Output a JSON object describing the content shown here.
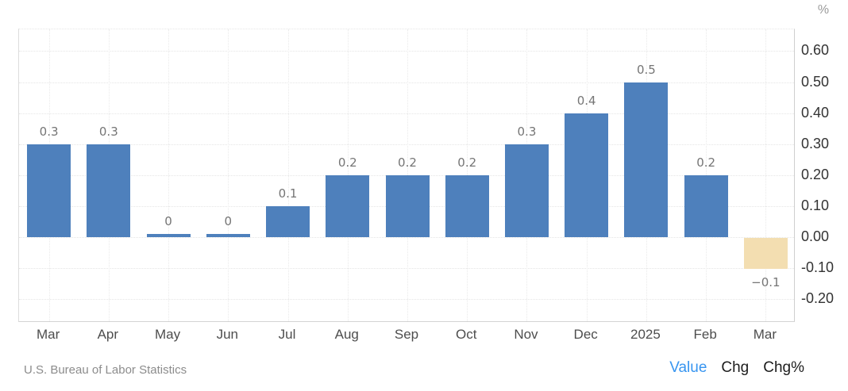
{
  "chart_data": {
    "type": "bar",
    "title": "",
    "xlabel": "",
    "ylabel": "%",
    "categories": [
      "Mar",
      "Apr",
      "May",
      "Jun",
      "Jul",
      "Aug",
      "Sep",
      "Oct",
      "Nov",
      "Dec",
      "2025",
      "Feb",
      "Mar"
    ],
    "values": [
      0.3,
      0.3,
      0,
      0,
      0.1,
      0.2,
      0.2,
      0.2,
      0.3,
      0.4,
      0.5,
      0.2,
      -0.1
    ],
    "bar_labels": [
      "0.3",
      "0.3",
      "0",
      "0",
      "0.1",
      "0.2",
      "0.2",
      "0.2",
      "0.3",
      "0.4",
      "0.5",
      "0.2",
      "−0.1"
    ],
    "yticks": [
      0.6,
      0.5,
      0.4,
      0.3,
      0.2,
      0.1,
      0,
      -0.1,
      -0.2
    ],
    "ytick_labels": [
      "0.60",
      "0.50",
      "0.40",
      "0.30",
      "0.20",
      "0.10",
      "0.00",
      "-0.10",
      "-0.20"
    ],
    "ylim": [
      -0.28,
      0.67
    ],
    "grid": true,
    "legend_position": "none",
    "bar_color": "#4e80bc",
    "negative_bar_color": "#f3deb1"
  },
  "footer": {
    "source": "U.S. Bureau of Labor Statistics",
    "links": [
      {
        "label": "Value",
        "active": true
      },
      {
        "label": "Chg",
        "active": false
      },
      {
        "label": "Chg%",
        "active": false
      }
    ]
  },
  "colors": {
    "active_link_blue": "#3795f0",
    "plain_link": "#1d1d1d",
    "positive_bar": "#4e80bc",
    "negative_bar": "#f3deb1"
  }
}
